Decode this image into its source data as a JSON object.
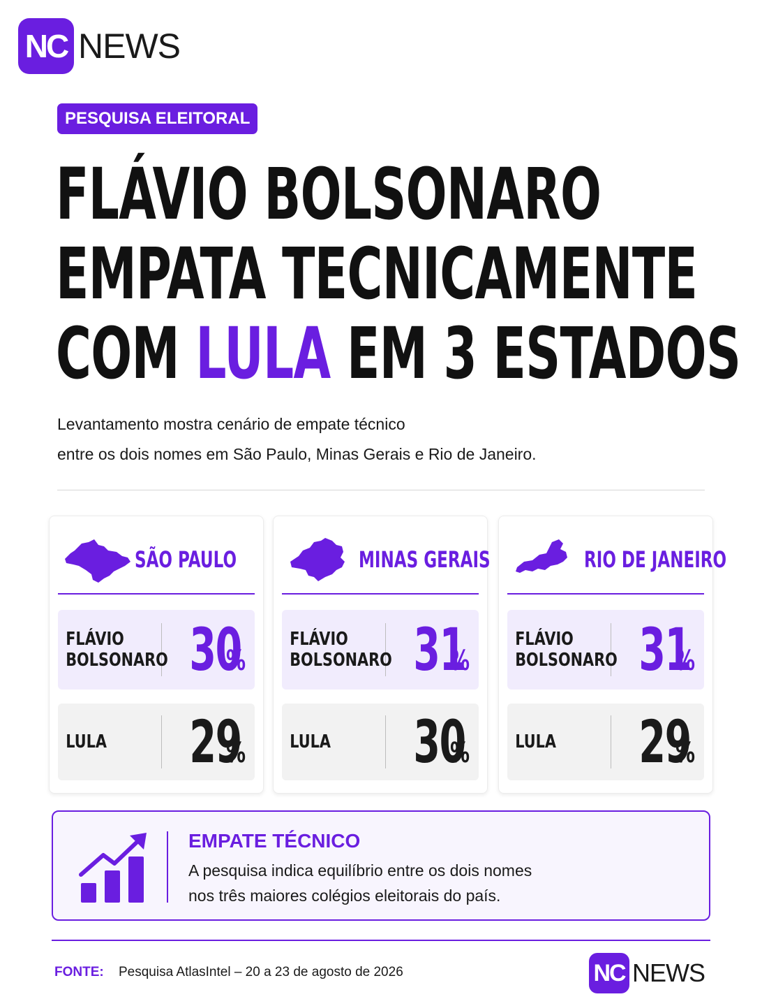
{
  "brand": {
    "badge": "NC",
    "word": "NEWS",
    "color": "#6a1ee0"
  },
  "tag": "PESQUISA ELEITORAL",
  "headline": {
    "line1": "FLÁVIO BOLSONARO",
    "line2": "EMPATA TECNICAMENTE",
    "line3_pre": "COM ",
    "line3_highlight": "LULA",
    "line3_post": " EM 3 ESTADOS"
  },
  "subtitle": {
    "line1": "Levantamento mostra cenário de empate técnico",
    "line2": "entre os dois nomes em São Paulo, Minas Gerais e Rio de Janeiro."
  },
  "states": [
    {
      "name": "SÃO PAULO",
      "icon": "sao-paulo-map-icon",
      "fb_label_1": "FLÁVIO",
      "fb_label_2": "BOLSONARO",
      "fb_value": "30",
      "lula_label": "LULA",
      "lula_value": "29",
      "unit": "%"
    },
    {
      "name": "MINAS GERAIS",
      "icon": "minas-gerais-map-icon",
      "fb_label_1": "FLÁVIO",
      "fb_label_2": "BOLSONARO",
      "fb_value": "31",
      "lula_label": "LULA",
      "lula_value": "30",
      "unit": "%"
    },
    {
      "name": "RIO DE JANEIRO",
      "icon": "rio-de-janeiro-map-icon",
      "fb_label_1": "FLÁVIO",
      "fb_label_2": "BOLSONARO",
      "fb_value": "31",
      "lula_label": "LULA",
      "lula_value": "29",
      "unit": "%"
    }
  ],
  "callout": {
    "icon": "bar-chart-trend-icon",
    "title": "EMPATE TÉCNICO",
    "line1": "A pesquisa indica equilíbrio entre os dois nomes",
    "line2": "nos três maiores colégios eleitorais do país."
  },
  "footer": {
    "label": "FONTE:",
    "source": "Pesquisa AtlasIntel – 20 a 23 de agosto de 2026"
  }
}
